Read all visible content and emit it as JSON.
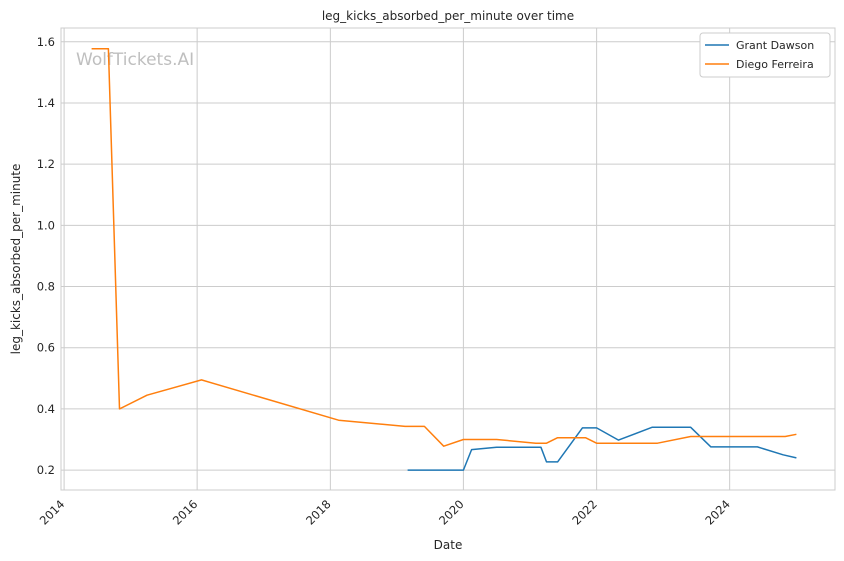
{
  "chart_data": {
    "type": "line",
    "title": "leg_kicks_absorbed_per_minute over time",
    "xlabel": "Date",
    "ylabel": "leg_kicks_absorbed_per_minute",
    "watermark": "WolfTickets.AI",
    "xlim": [
      "2013-12-15",
      "2025-08-01"
    ],
    "ylim": [
      0.135,
      1.645
    ],
    "x_ticks": [
      "2014",
      "2016",
      "2018",
      "2020",
      "2022",
      "2024"
    ],
    "y_ticks": [
      "0.2",
      "0.4",
      "0.6",
      "0.8",
      "1.0",
      "1.2",
      "1.4",
      "1.6"
    ],
    "grid": true,
    "legend_position": "top-right",
    "series": [
      {
        "name": "Grant Dawson",
        "color": "#1f77b4",
        "points": [
          [
            "2019-03-01",
            0.2
          ],
          [
            "2019-06-15",
            0.2
          ],
          [
            "2019-10-01",
            0.2
          ],
          [
            "2020-01-01",
            0.2
          ],
          [
            "2020-02-15",
            0.267
          ],
          [
            "2020-07-01",
            0.275
          ],
          [
            "2021-03-01",
            0.275
          ],
          [
            "2021-04-01",
            0.227
          ],
          [
            "2021-06-01",
            0.227
          ],
          [
            "2021-10-15",
            0.338
          ],
          [
            "2022-01-01",
            0.338
          ],
          [
            "2022-05-01",
            0.298
          ],
          [
            "2022-11-01",
            0.34
          ],
          [
            "2023-06-01",
            0.34
          ],
          [
            "2023-09-20",
            0.276
          ],
          [
            "2024-06-01",
            0.276
          ],
          [
            "2024-10-20",
            0.25
          ],
          [
            "2025-01-01",
            0.24
          ]
        ]
      },
      {
        "name": "Diego Ferreira",
        "color": "#ff7f0e",
        "points": [
          [
            "2014-06-01",
            1.577
          ],
          [
            "2014-09-01",
            1.577
          ],
          [
            "2014-11-01",
            0.4
          ],
          [
            "2015-04-01",
            0.445
          ],
          [
            "2016-01-25",
            0.495
          ],
          [
            "2018-02-15",
            0.363
          ],
          [
            "2019-02-15",
            0.343
          ],
          [
            "2019-06-01",
            0.343
          ],
          [
            "2019-09-15",
            0.278
          ],
          [
            "2020-01-01",
            0.3
          ],
          [
            "2020-07-01",
            0.3
          ],
          [
            "2021-02-01",
            0.288
          ],
          [
            "2021-04-01",
            0.288
          ],
          [
            "2021-06-01",
            0.306
          ],
          [
            "2021-11-01",
            0.306
          ],
          [
            "2022-01-01",
            0.288
          ],
          [
            "2022-12-01",
            0.288
          ],
          [
            "2023-06-01",
            0.31
          ],
          [
            "2024-11-01",
            0.31
          ],
          [
            "2025-01-01",
            0.317
          ]
        ]
      }
    ]
  }
}
